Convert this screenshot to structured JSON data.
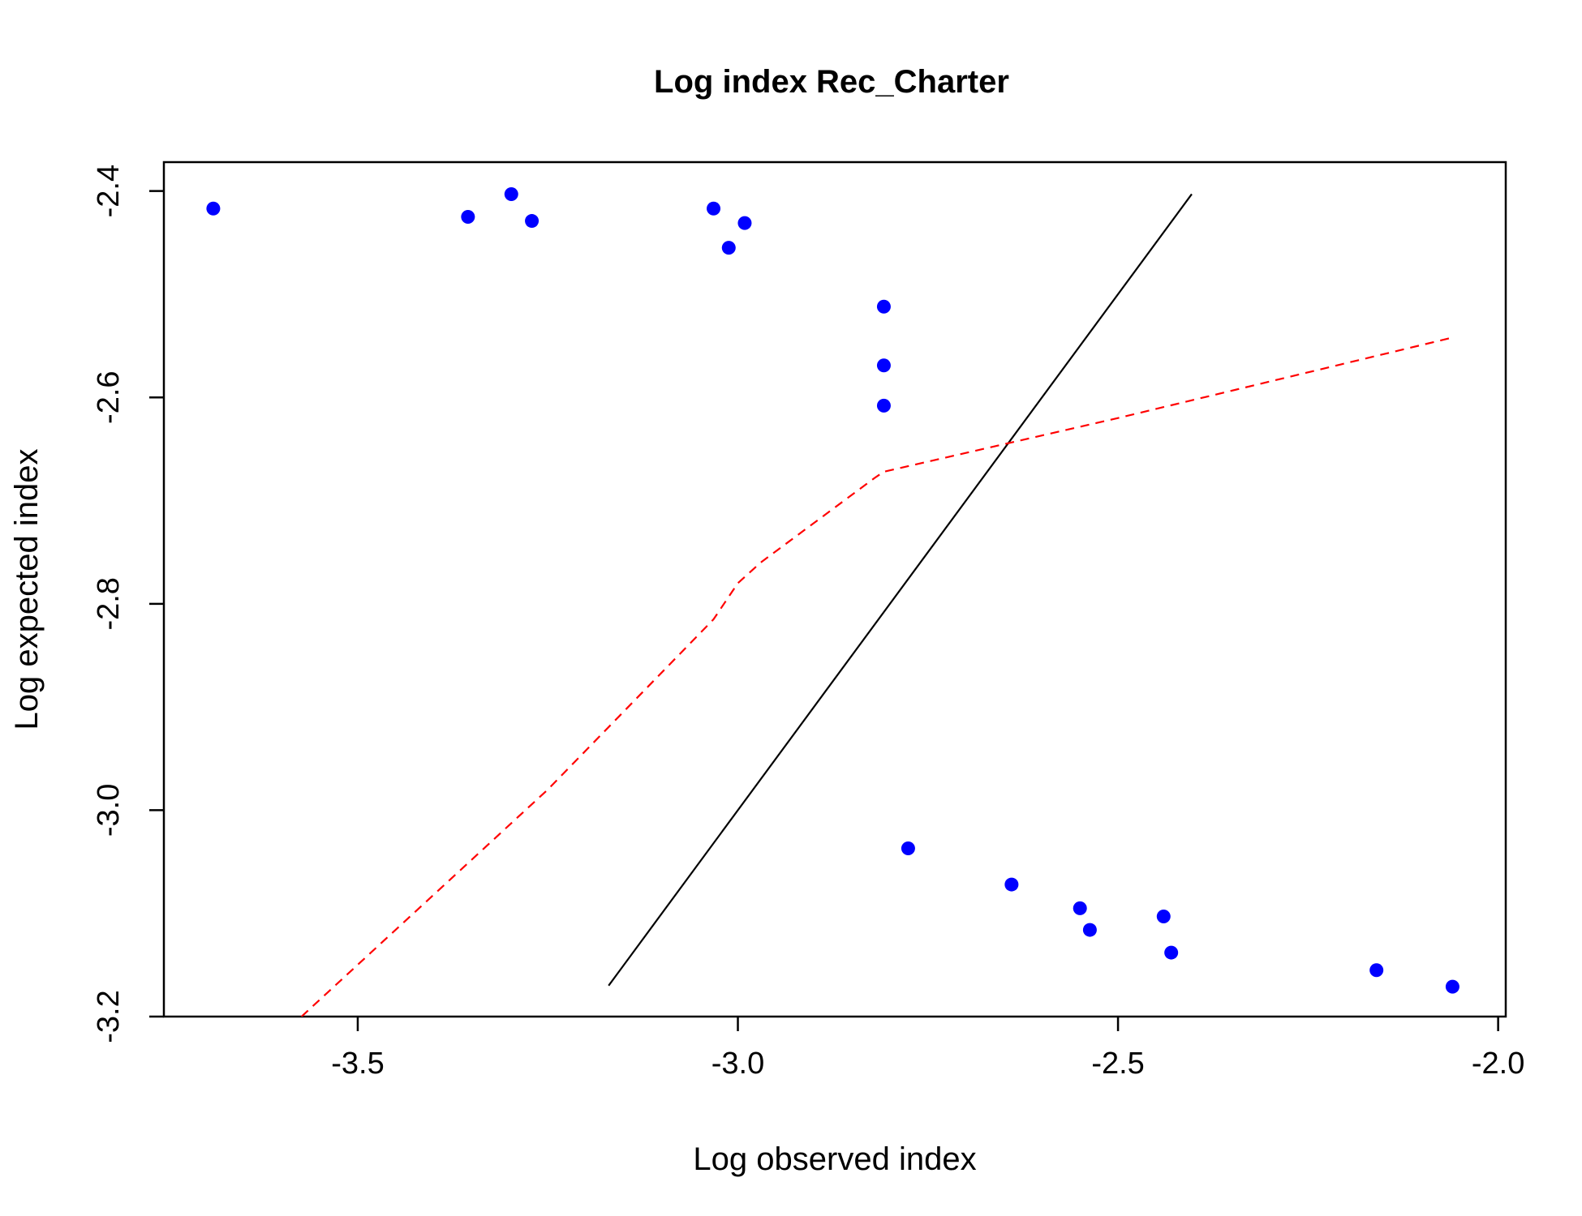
{
  "chart_data": {
    "type": "scatter",
    "title": "Log index Rec_Charter",
    "xlabel": "Log observed index",
    "ylabel": "Log expected index",
    "xlim": [
      -3.755,
      -1.99
    ],
    "ylim": [
      -3.2,
      -2.372
    ],
    "x_ticks": [
      -3.5,
      -3.0,
      -2.5,
      -2.0
    ],
    "x_tick_labels": [
      "-3.5",
      "-3.0",
      "-2.5",
      "-2.0"
    ],
    "y_ticks": [
      -3.2,
      -3.0,
      -2.8,
      -2.6,
      -2.4
    ],
    "y_tick_labels": [
      "-3.2",
      "-3.0",
      "-2.8",
      "-2.6",
      "-2.4"
    ],
    "grid": false,
    "legend": "none",
    "points": {
      "color": "#0000ff",
      "x": [
        -3.69,
        -3.355,
        -3.298,
        -3.271,
        -3.032,
        -2.991,
        -3.012,
        -2.808,
        -2.808,
        -2.808,
        -2.776,
        -2.64,
        -2.55,
        -2.537,
        -2.44,
        -2.43,
        -2.16,
        -2.06
      ],
      "y": [
        -2.417,
        -2.425,
        -2.403,
        -2.429,
        -2.417,
        -2.431,
        -2.455,
        -2.512,
        -2.569,
        -2.608,
        -3.037,
        -3.072,
        -3.095,
        -3.116,
        -3.103,
        -3.138,
        -3.155,
        -3.171
      ]
    },
    "identity_line": {
      "color": "#000000",
      "x": [
        -3.17,
        -2.403
      ],
      "y": [
        -3.17,
        -2.403
      ]
    },
    "smooth_line": {
      "color": "#ff0000",
      "style": "dashed",
      "x": [
        -3.574,
        -3.25,
        -3.032,
        -3.0,
        -2.97,
        -2.82,
        -2.808,
        -2.5,
        -2.06
      ],
      "y": [
        -3.2,
        -2.98,
        -2.815,
        -2.78,
        -2.76,
        -2.678,
        -2.672,
        -2.62,
        -2.542
      ]
    }
  }
}
